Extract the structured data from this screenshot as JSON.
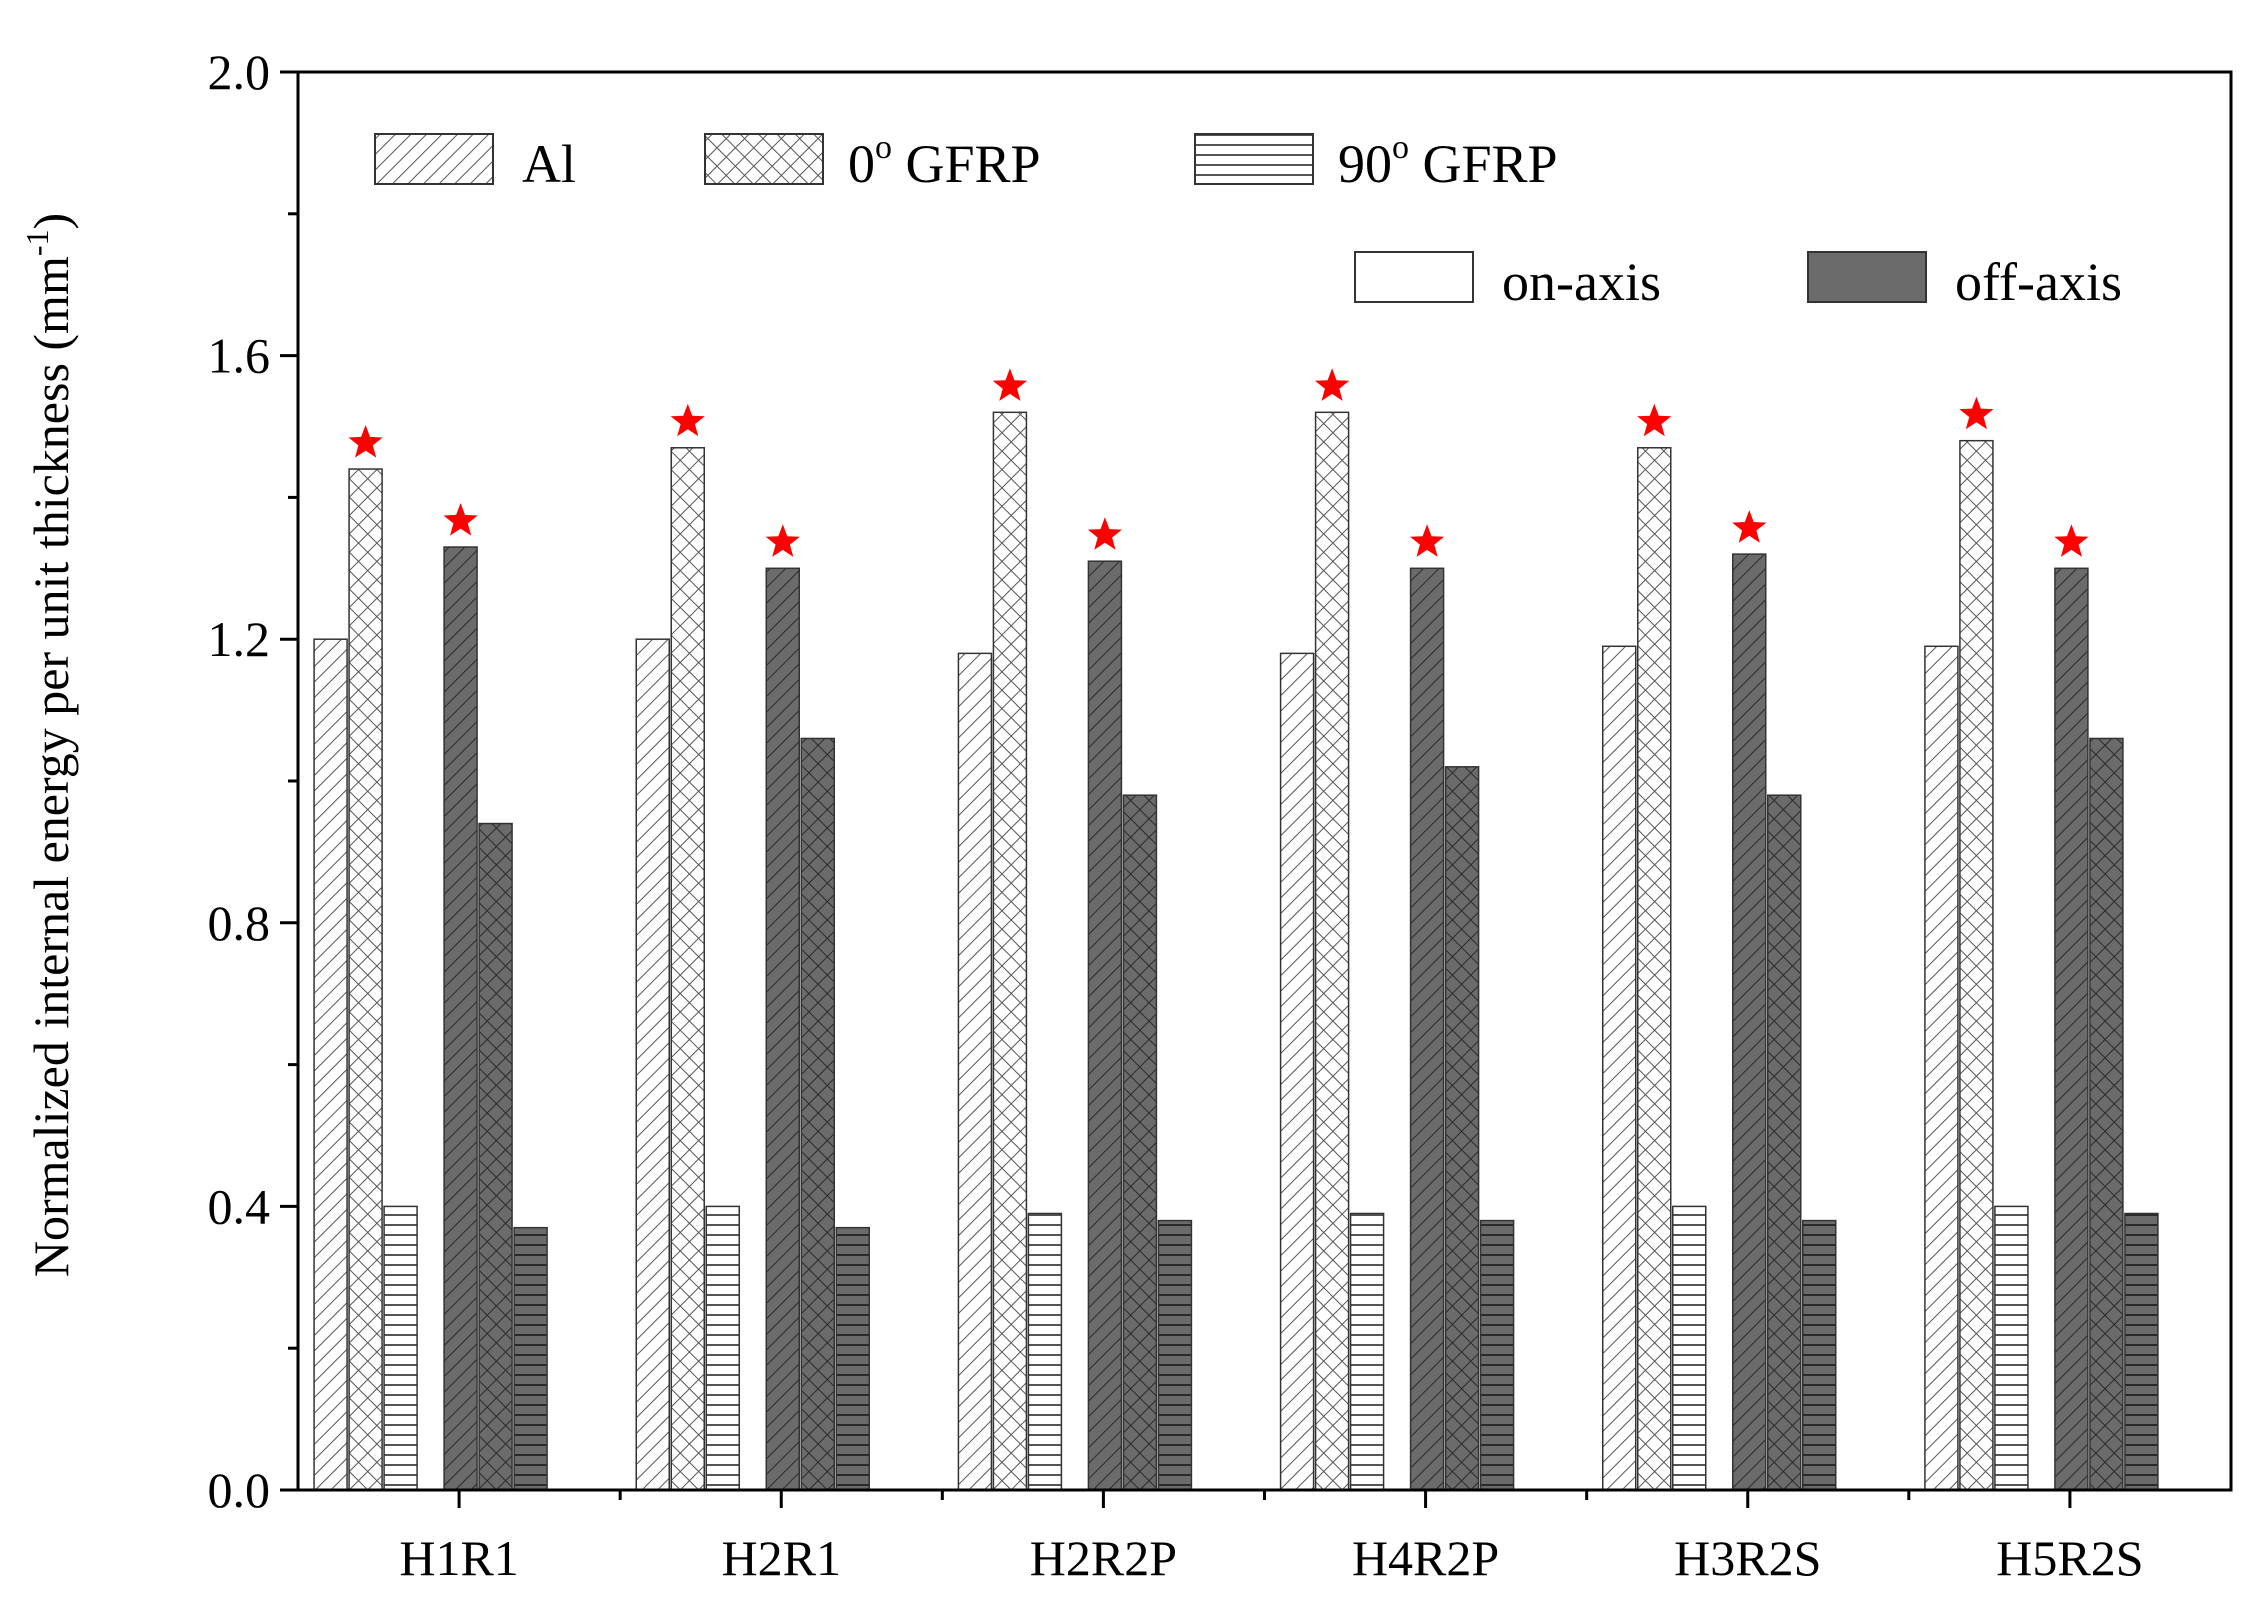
{
  "chart_data": {
    "type": "bar",
    "title": "",
    "xlabel": "",
    "ylabel": "Normalized internal energy per unit thickness (mm",
    "ylabel_superscript": "-1",
    "ylabel_suffix": ")",
    "ylim": [
      0,
      2.0
    ],
    "yticks": [
      "0.0",
      "0.4",
      "0.8",
      "1.2",
      "1.6",
      "2.0"
    ],
    "categories": [
      "H1R1",
      "H2R1",
      "H2R2P",
      "H4R2P",
      "H3R2S",
      "H5R2S"
    ],
    "series": [
      {
        "name": "Al",
        "material": "Al",
        "axis": "on-axis",
        "pattern": "diag",
        "values": [
          1.2,
          1.2,
          1.18,
          1.18,
          1.19,
          1.19
        ]
      },
      {
        "name": "0° GFRP",
        "material": "0o GFRP",
        "axis": "on-axis",
        "pattern": "cross",
        "values": [
          1.44,
          1.47,
          1.52,
          1.52,
          1.47,
          1.48
        ]
      },
      {
        "name": "90° GFRP",
        "material": "90o GFRP",
        "axis": "on-axis",
        "pattern": "horiz",
        "values": [
          0.4,
          0.4,
          0.39,
          0.39,
          0.4,
          0.4
        ]
      },
      {
        "name": "Al",
        "material": "Al",
        "axis": "off-axis",
        "pattern": "diag",
        "values": [
          1.33,
          1.3,
          1.31,
          1.3,
          1.32,
          1.3
        ]
      },
      {
        "name": "0° GFRP",
        "material": "0o GFRP",
        "axis": "off-axis",
        "pattern": "cross",
        "values": [
          0.94,
          1.06,
          0.98,
          1.02,
          0.98,
          1.06
        ]
      },
      {
        "name": "90° GFRP",
        "material": "90o GFRP",
        "axis": "off-axis",
        "pattern": "horiz",
        "values": [
          0.37,
          0.37,
          0.38,
          0.38,
          0.38,
          0.39
        ]
      }
    ],
    "star_markers": "on max on-axis and max off-axis bar of each group",
    "legend": {
      "placement": "top",
      "materials": [
        {
          "base": "Al",
          "sup": "",
          "rest": "",
          "pattern": "diag"
        },
        {
          "base": "0",
          "sup": "o",
          "rest": " GFRP",
          "pattern": "cross"
        },
        {
          "base": "90",
          "sup": "o",
          "rest": " GFRP",
          "pattern": "horiz"
        }
      ],
      "shading": [
        {
          "label": "on-axis",
          "color": "#ffffff"
        },
        {
          "label": "off-axis",
          "color": "#6b6b6b"
        }
      ]
    },
    "colors": {
      "on_axis_fill": "#ffffff",
      "off_axis_fill": "#6b6b6b",
      "star": "#ff0000",
      "hatch_on": "#555555",
      "hatch_off": "#2a2a2a"
    }
  }
}
